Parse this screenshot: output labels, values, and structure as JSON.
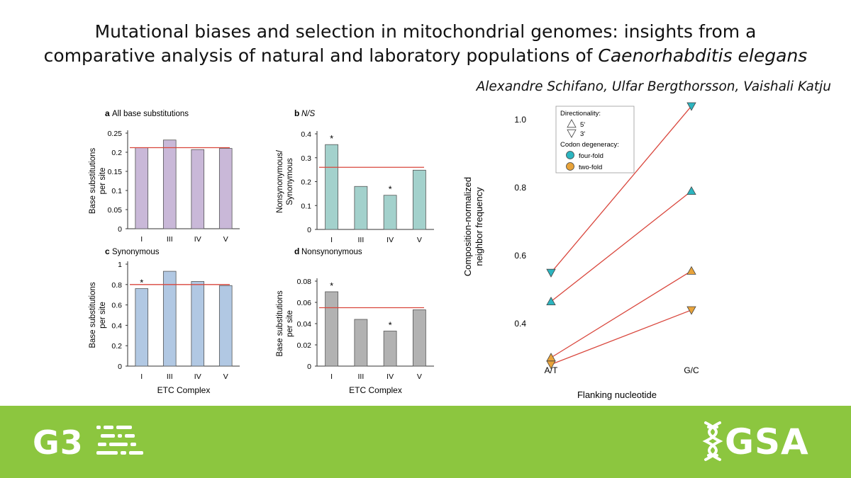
{
  "title": {
    "line1": "Mutational biases and selection in mitochondrial genomes: insights from a",
    "line2_prefix": "comparative analysis of natural and laboratory populations of ",
    "line2_italic": "Caenorhabditis elegans"
  },
  "authors": "Alexandre Schifano, Ulfar Bergthorsson, Vaishali Katju",
  "chart_data": [
    {
      "panel": "a",
      "type": "bar",
      "title": "All base substitutions",
      "categories": [
        "I",
        "III",
        "IV",
        "V"
      ],
      "values": [
        0.212,
        0.232,
        0.207,
        0.21
      ],
      "reference_line": 0.212,
      "ylabel": "Base substitutions per site",
      "xlabel": "",
      "ylim": [
        0,
        0.25
      ],
      "yticks": [
        "0",
        "0.05",
        "0.1",
        "0.15",
        "0.2",
        "0.25"
      ],
      "color": "#c9b8d8",
      "stars": []
    },
    {
      "panel": "b",
      "type": "bar",
      "title": "N/S",
      "categories": [
        "I",
        "III",
        "IV",
        "V"
      ],
      "values": [
        0.355,
        0.18,
        0.143,
        0.248
      ],
      "reference_line": 0.26,
      "ylabel": "Nonsynonymous/ Synonymous",
      "xlabel": "",
      "ylim": [
        0,
        0.4
      ],
      "yticks": [
        "0",
        "0.1",
        "0.2",
        "0.3",
        "0.4"
      ],
      "color": "#a3d1cc",
      "stars": [
        0,
        2
      ]
    },
    {
      "panel": "c",
      "type": "bar",
      "title": "Synonymous",
      "categories": [
        "I",
        "III",
        "IV",
        "V"
      ],
      "values": [
        0.76,
        0.93,
        0.83,
        0.79
      ],
      "reference_line": 0.8,
      "ylabel": "Base substitutions per site",
      "xlabel": "ETC Complex",
      "ylim": [
        0,
        1.0
      ],
      "yticks": [
        "0",
        "0.2",
        "0.4",
        "0.6",
        "0.8",
        "1"
      ],
      "color": "#b1c8e3",
      "stars": [
        0
      ]
    },
    {
      "panel": "d",
      "type": "bar",
      "title": "Nonsynonymous",
      "categories": [
        "I",
        "III",
        "IV",
        "V"
      ],
      "values": [
        0.07,
        0.044,
        0.033,
        0.053
      ],
      "reference_line": 0.055,
      "ylabel": "Base substitutions per site",
      "xlabel": "ETC Complex",
      "ylim": [
        0,
        0.08
      ],
      "yticks": [
        "0",
        "0.02",
        "0.04",
        "0.06",
        "0.08"
      ],
      "color": "#b2b2b2",
      "stars": [
        0,
        2
      ]
    },
    {
      "panel": "line",
      "type": "line",
      "xlabel": "Flanking nucleotide",
      "ylabel": "Composition-normalized neighbor frequency",
      "categories": [
        "A/T",
        "G/C"
      ],
      "ylim": [
        0.3,
        1.05
      ],
      "yticks": [
        "0.4",
        "0.6",
        "0.8",
        "1.0"
      ],
      "ytick_values": [
        0.4,
        0.6,
        0.8,
        1.0
      ],
      "legend": {
        "directionality_title": "Directionality:",
        "directionality": [
          "5'",
          "3'"
        ],
        "degeneracy_title": "Codon degeneracy:",
        "degeneracy": [
          "four-fold",
          "two-fold"
        ]
      },
      "series": [
        {
          "name": "four-fold 3'",
          "direction": "3'",
          "degeneracy": "four-fold",
          "values": [
            0.55,
            1.04
          ]
        },
        {
          "name": "four-fold 5'",
          "direction": "5'",
          "degeneracy": "four-fold",
          "values": [
            0.465,
            0.79
          ]
        },
        {
          "name": "two-fold 5'",
          "direction": "5'",
          "degeneracy": "two-fold",
          "values": [
            0.3,
            0.555
          ]
        },
        {
          "name": "two-fold 3'",
          "direction": "3'",
          "degeneracy": "two-fold",
          "values": [
            0.28,
            0.44
          ]
        }
      ],
      "colors": {
        "four-fold": "#2cb5c0",
        "two-fold": "#e8a33a",
        "line": "#d9463c"
      }
    }
  ],
  "colors": {
    "footer": "#8cc63f",
    "ref_line": "#d9463c"
  },
  "footer": {
    "left_logo": "G3",
    "right_logo": "GSA"
  }
}
